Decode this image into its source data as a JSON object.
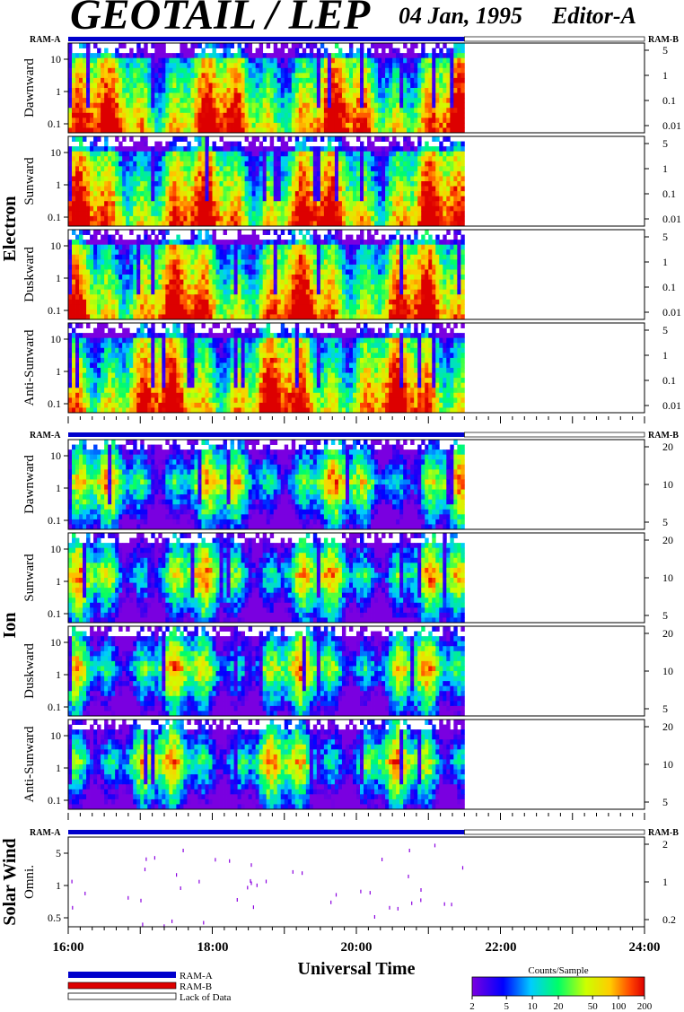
{
  "header": {
    "title": "GEOTAIL / LEP",
    "date": "04 Jan, 1995",
    "editor": "Editor-A"
  },
  "ram_labels": {
    "left": "RAM-A",
    "right": "RAM-B"
  },
  "colors": {
    "ram_a": "#0000cc",
    "ram_b": "#dd0000",
    "lack": "#ffffff"
  },
  "chart_data": {
    "type": "heatmap",
    "x_axis": {
      "label": "Universal Time",
      "range": [
        "16:00",
        "24:00"
      ],
      "ticks": [
        "16:00",
        "18:00",
        "20:00",
        "22:00",
        "24:00"
      ],
      "data_end": "21:30"
    },
    "groups": [
      {
        "name": "Electron",
        "left_ticks": [
          "10",
          "1",
          "0.1"
        ],
        "right_ticks": [
          "5",
          "1",
          "0.1",
          "0.01"
        ],
        "panels": [
          "Dawnward",
          "Sunward",
          "Duskward",
          "Anti-Sunward"
        ]
      },
      {
        "name": "Ion",
        "left_ticks": [
          "10",
          "1",
          "0.1"
        ],
        "right_ticks": [
          "20",
          "10",
          "5"
        ],
        "panels": [
          "Dawnward",
          "Sunward",
          "Duskward",
          "Anti-Sunward"
        ]
      },
      {
        "name": "Solar Wind",
        "left_ticks": [
          "5",
          "1",
          "0.5"
        ],
        "right_ticks": [
          "2",
          "1",
          "0.2"
        ],
        "panels": [
          "Omni."
        ]
      }
    ],
    "legend": {
      "entries": [
        "RAM-A",
        "RAM-B",
        "Lack of Data"
      ]
    },
    "colorbar": {
      "title": "Counts/Sample",
      "ticks": [
        "2",
        "5",
        "10",
        "20",
        "50",
        "100",
        "200"
      ],
      "scale": "log",
      "range": [
        2,
        200
      ]
    }
  }
}
